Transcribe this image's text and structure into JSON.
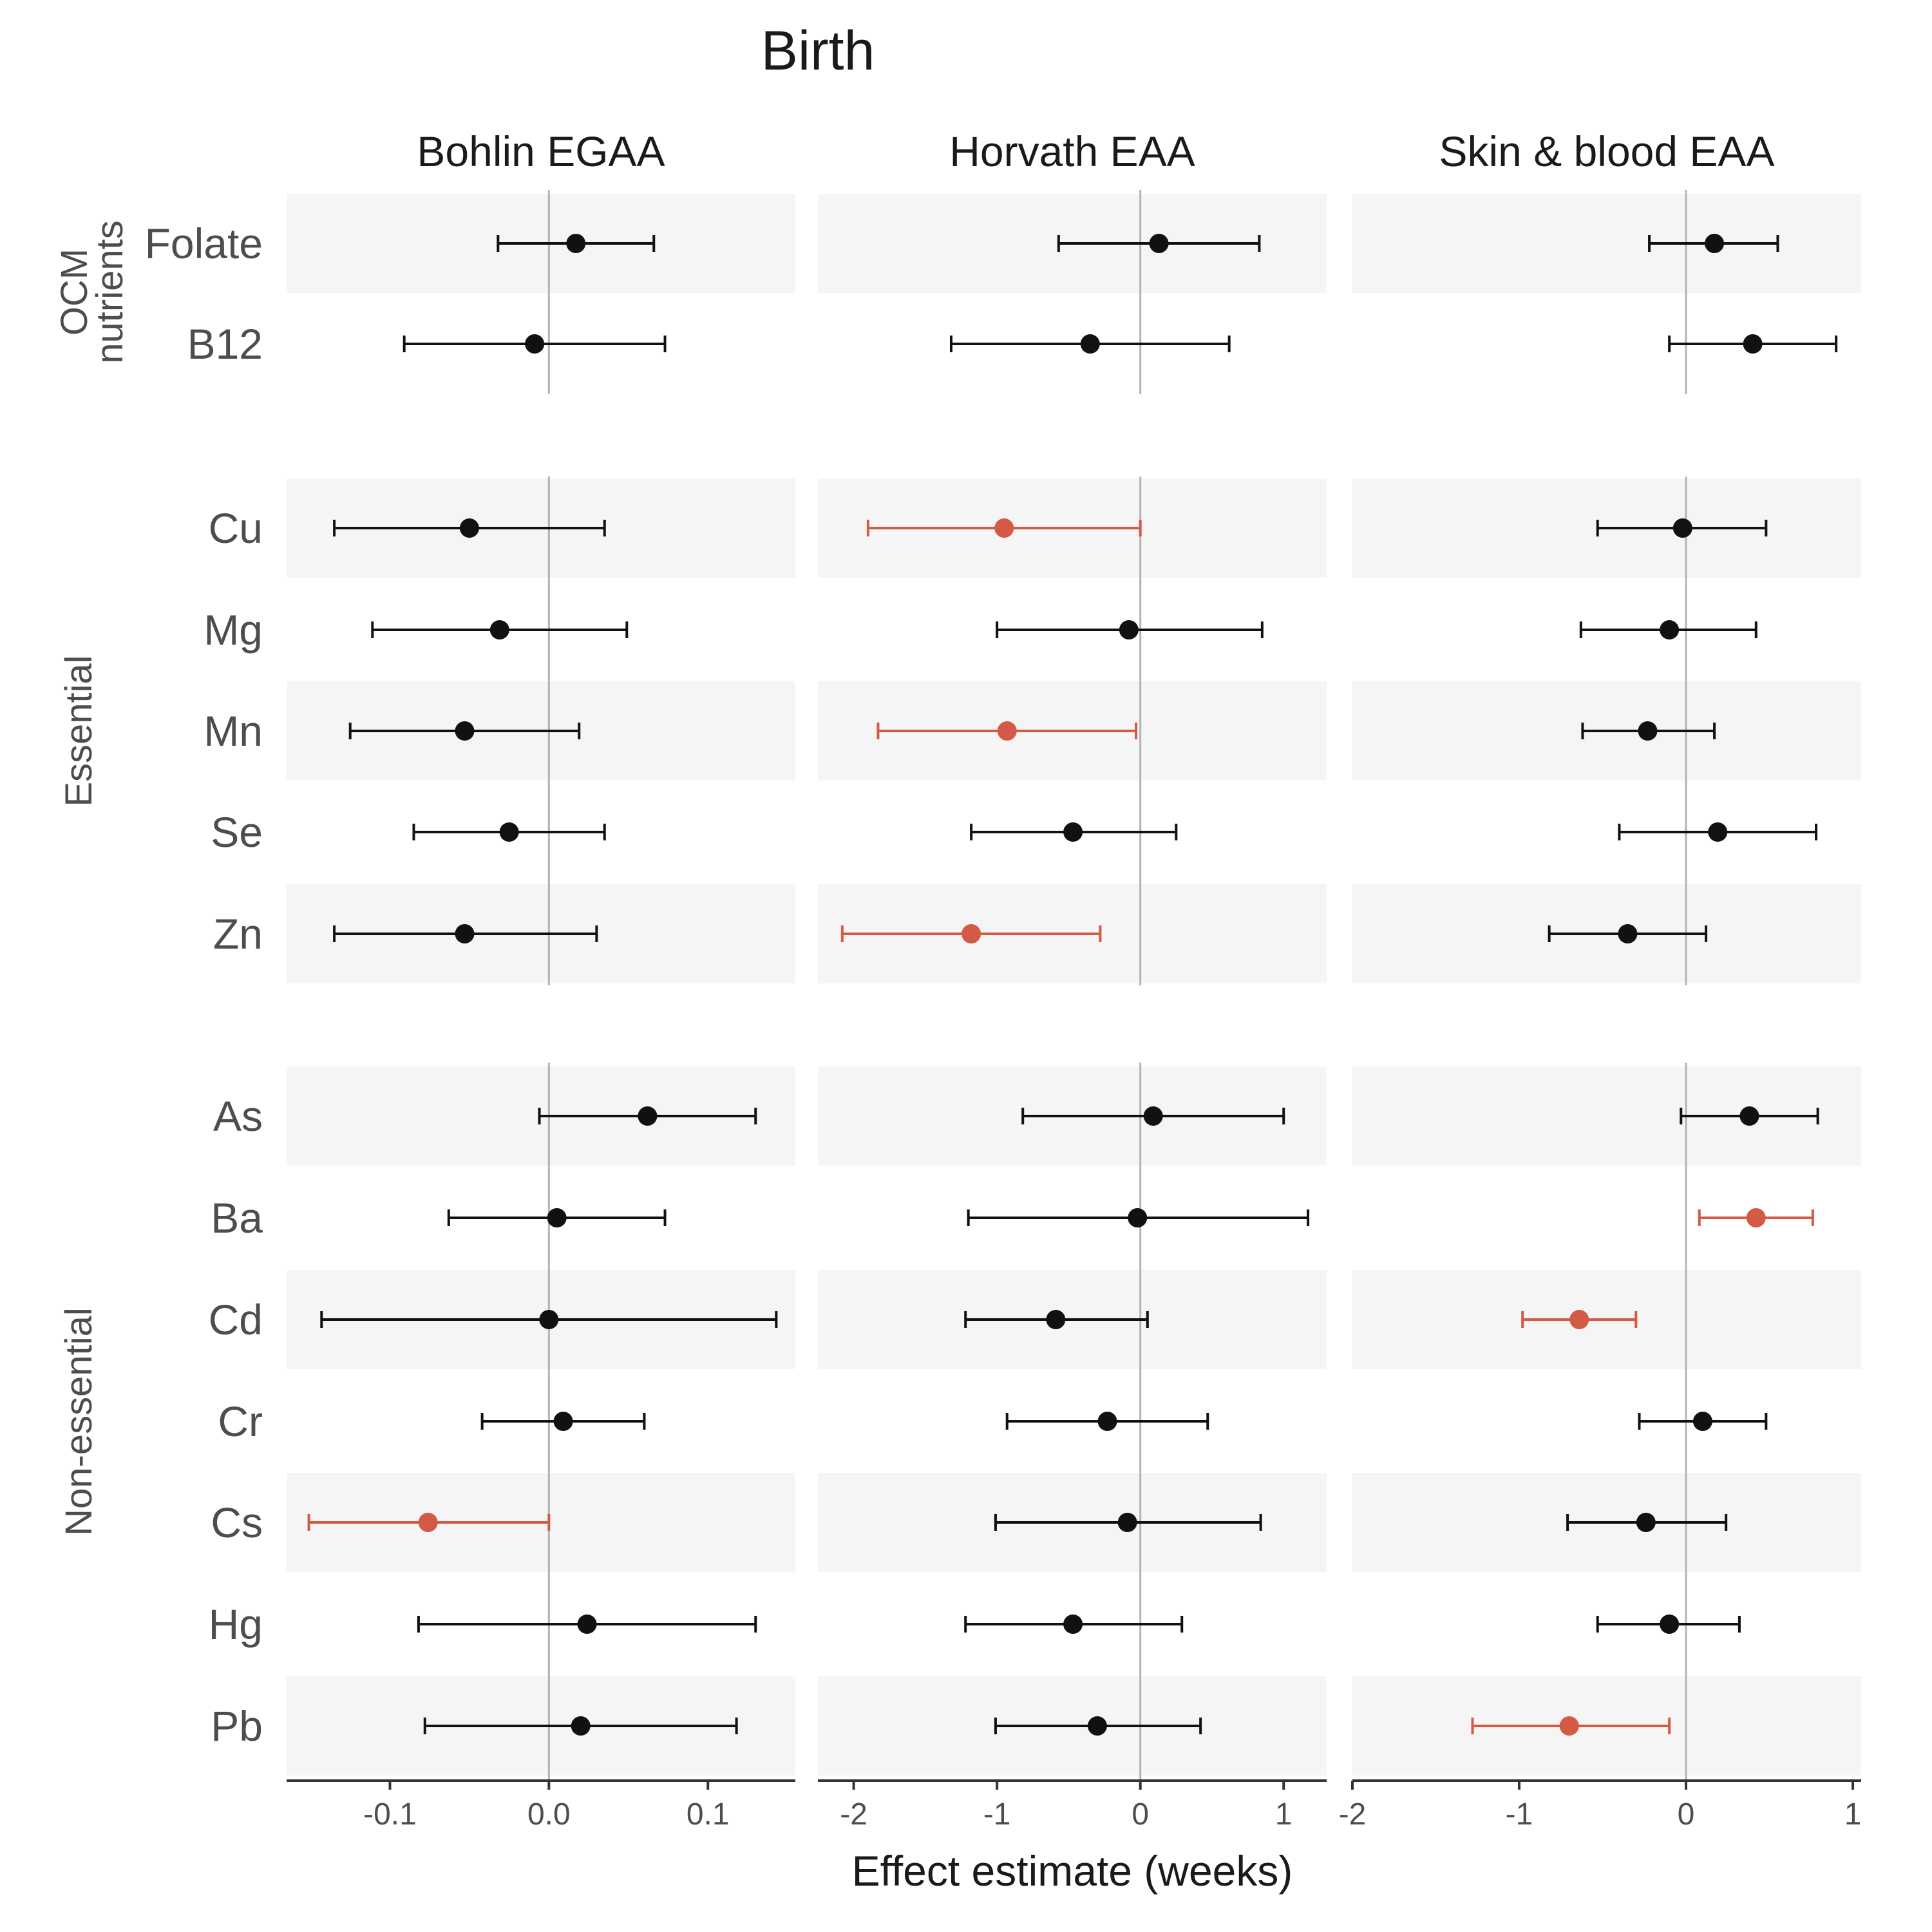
{
  "chart_data": {
    "type": "forest",
    "title": "Birth",
    "xlabel": "Effect estimate (weeks)",
    "facets": [
      {
        "name": "Bohlin EGAA",
        "xlim": [
          -0.165,
          0.155
        ],
        "ticks": [
          -0.1,
          0.0,
          0.1
        ],
        "tick_labels": [
          "-0.1",
          "0.0",
          "0.1"
        ]
      },
      {
        "name": "Horvath EAA",
        "xlim": [
          -2.25,
          1.3
        ],
        "ticks": [
          -2,
          -1,
          0,
          1
        ],
        "tick_labels": [
          "-2",
          "-1",
          "0",
          "1"
        ]
      },
      {
        "name": "Skin & blood EAA",
        "xlim": [
          -2.0,
          1.05
        ],
        "ticks": [
          -2,
          -1,
          0,
          1
        ],
        "tick_labels": [
          "-2",
          "-1",
          "0",
          "1"
        ]
      }
    ],
    "groups": [
      {
        "label": "OCM\nnutrients",
        "label_lines": [
          "OCM",
          "nutrients"
        ],
        "rows": [
          "Folate",
          "B12"
        ]
      },
      {
        "label": "Essential",
        "label_lines": [
          "Essential"
        ],
        "rows": [
          "Cu",
          "Mg",
          "Mn",
          "Se",
          "Zn"
        ]
      },
      {
        "label": "Non-essential",
        "label_lines": [
          "Non-essential"
        ],
        "rows": [
          "As",
          "Ba",
          "Cd",
          "Cr",
          "Cs",
          "Hg",
          "Pb"
        ]
      }
    ],
    "series": [
      {
        "facet": "Bohlin EGAA",
        "estimates": [
          {
            "row": "Folate",
            "est": 0.017,
            "lo": -0.032,
            "hi": 0.066,
            "significant": false
          },
          {
            "row": "B12",
            "est": -0.009,
            "lo": -0.091,
            "hi": 0.073,
            "significant": false
          },
          {
            "row": "Cu",
            "est": -0.05,
            "lo": -0.135,
            "hi": 0.035,
            "significant": false
          },
          {
            "row": "Mg",
            "est": -0.031,
            "lo": -0.111,
            "hi": 0.049,
            "significant": false
          },
          {
            "row": "Mn",
            "est": -0.053,
            "lo": -0.125,
            "hi": 0.019,
            "significant": false
          },
          {
            "row": "Se",
            "est": -0.025,
            "lo": -0.085,
            "hi": 0.035,
            "significant": false
          },
          {
            "row": "Zn",
            "est": -0.053,
            "lo": -0.135,
            "hi": 0.03,
            "significant": false
          },
          {
            "row": "As",
            "est": 0.062,
            "lo": -0.006,
            "hi": 0.13,
            "significant": false
          },
          {
            "row": "Ba",
            "est": 0.005,
            "lo": -0.063,
            "hi": 0.073,
            "significant": false
          },
          {
            "row": "Cd",
            "est": 0.0,
            "lo": -0.143,
            "hi": 0.143,
            "significant": false
          },
          {
            "row": "Cr",
            "est": 0.009,
            "lo": -0.042,
            "hi": 0.06,
            "significant": false
          },
          {
            "row": "Cs",
            "est": -0.076,
            "lo": -0.151,
            "hi": 0.0,
            "significant": true
          },
          {
            "row": "Hg",
            "est": 0.024,
            "lo": -0.082,
            "hi": 0.13,
            "significant": false
          },
          {
            "row": "Pb",
            "est": 0.02,
            "lo": -0.078,
            "hi": 0.118,
            "significant": false
          }
        ]
      },
      {
        "facet": "Horvath EAA",
        "estimates": [
          {
            "row": "Folate",
            "est": 0.13,
            "lo": -0.57,
            "hi": 0.83,
            "significant": false
          },
          {
            "row": "B12",
            "est": -0.35,
            "lo": -1.32,
            "hi": 0.62,
            "significant": false
          },
          {
            "row": "Cu",
            "est": -0.95,
            "lo": -1.9,
            "hi": 0.0,
            "significant": true
          },
          {
            "row": "Mg",
            "est": -0.08,
            "lo": -1.0,
            "hi": 0.85,
            "significant": false
          },
          {
            "row": "Mn",
            "est": -0.93,
            "lo": -1.83,
            "hi": -0.03,
            "significant": true
          },
          {
            "row": "Se",
            "est": -0.47,
            "lo": -1.18,
            "hi": 0.25,
            "significant": false
          },
          {
            "row": "Zn",
            "est": -1.18,
            "lo": -2.08,
            "hi": -0.28,
            "significant": true
          },
          {
            "row": "As",
            "est": 0.09,
            "lo": -0.82,
            "hi": 1.0,
            "significant": false
          },
          {
            "row": "Ba",
            "est": -0.02,
            "lo": -1.2,
            "hi": 1.17,
            "significant": false
          },
          {
            "row": "Cd",
            "est": -0.59,
            "lo": -1.22,
            "hi": 0.05,
            "significant": false
          },
          {
            "row": "Cr",
            "est": -0.23,
            "lo": -0.93,
            "hi": 0.47,
            "significant": false
          },
          {
            "row": "Cs",
            "est": -0.09,
            "lo": -1.01,
            "hi": 0.84,
            "significant": false
          },
          {
            "row": "Hg",
            "est": -0.47,
            "lo": -1.22,
            "hi": 0.29,
            "significant": false
          },
          {
            "row": "Pb",
            "est": -0.3,
            "lo": -1.01,
            "hi": 0.42,
            "significant": false
          }
        ]
      },
      {
        "facet": "Skin & blood EAA",
        "estimates": [
          {
            "row": "Folate",
            "est": 0.17,
            "lo": -0.22,
            "hi": 0.55,
            "significant": false
          },
          {
            "row": "B12",
            "est": 0.4,
            "lo": -0.1,
            "hi": 0.9,
            "significant": false
          },
          {
            "row": "Cu",
            "est": -0.02,
            "lo": -0.53,
            "hi": 0.48,
            "significant": false
          },
          {
            "row": "Mg",
            "est": -0.1,
            "lo": -0.63,
            "hi": 0.42,
            "significant": false
          },
          {
            "row": "Mn",
            "est": -0.23,
            "lo": -0.62,
            "hi": 0.17,
            "significant": false
          },
          {
            "row": "Se",
            "est": 0.19,
            "lo": -0.4,
            "hi": 0.78,
            "significant": false
          },
          {
            "row": "Zn",
            "est": -0.35,
            "lo": -0.82,
            "hi": 0.12,
            "significant": false
          },
          {
            "row": "As",
            "est": 0.38,
            "lo": -0.03,
            "hi": 0.79,
            "significant": false
          },
          {
            "row": "Ba",
            "est": 0.42,
            "lo": 0.08,
            "hi": 0.76,
            "significant": true
          },
          {
            "row": "Cd",
            "est": -0.64,
            "lo": -0.98,
            "hi": -0.3,
            "significant": true
          },
          {
            "row": "Cr",
            "est": 0.1,
            "lo": -0.28,
            "hi": 0.48,
            "significant": false
          },
          {
            "row": "Cs",
            "est": -0.24,
            "lo": -0.71,
            "hi": 0.24,
            "significant": false
          },
          {
            "row": "Hg",
            "est": -0.1,
            "lo": -0.53,
            "hi": 0.32,
            "significant": false
          },
          {
            "row": "Pb",
            "est": -0.7,
            "lo": -1.28,
            "hi": -0.1,
            "significant": true
          }
        ]
      }
    ],
    "colors": {
      "not_significant": "#111111",
      "significant": "#d35a45",
      "band": "#f5f5f5",
      "zero_line": "#b3b3b3",
      "axis": "#333333"
    }
  }
}
